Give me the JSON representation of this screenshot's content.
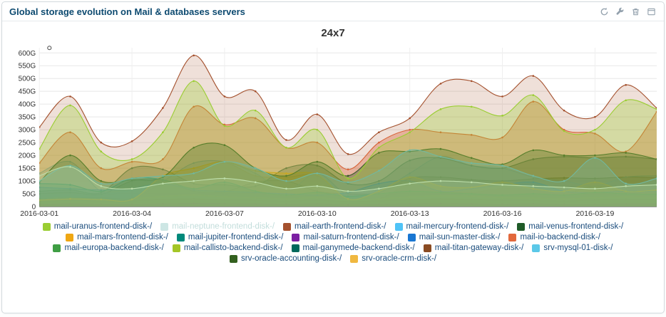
{
  "panel": {
    "title": "Global storage evolution on Mail & databases servers",
    "toolbar_icons": [
      "refresh",
      "wrench",
      "trash",
      "collapse"
    ]
  },
  "chart_data": {
    "type": "area",
    "title": "24x7",
    "unit": "G",
    "grid": true,
    "legend_position": "bottom",
    "ylim": [
      0,
      620
    ],
    "y_ticks": [
      "0",
      "50G",
      "100G",
      "150G",
      "200G",
      "250G",
      "300G",
      "350G",
      "400G",
      "450G",
      "500G",
      "550G",
      "600G"
    ],
    "x_tick_labels": [
      "2016-03-01",
      "2016-03-04",
      "2016-03-07",
      "2016-03-10",
      "2016-03-13",
      "2016-03-16",
      "2016-03-19"
    ],
    "x": [
      "2016-03-01",
      "2016-03-02",
      "2016-03-03",
      "2016-03-04",
      "2016-03-05",
      "2016-03-06",
      "2016-03-07",
      "2016-03-08",
      "2016-03-09",
      "2016-03-10",
      "2016-03-11",
      "2016-03-12",
      "2016-03-13",
      "2016-03-14",
      "2016-03-15",
      "2016-03-16",
      "2016-03-17",
      "2016-03-18",
      "2016-03-19",
      "2016-03-20",
      "2016-03-21"
    ],
    "series": [
      {
        "name": "mail-uranus-frontend-disk-/",
        "color": "#9ACD32",
        "values": [
          225,
          395,
          215,
          185,
          290,
          490,
          315,
          375,
          230,
          300,
          110,
          230,
          290,
          380,
          390,
          355,
          435,
          295,
          300,
          415,
          380
        ]
      },
      {
        "name": "mail-neptune-frontend-disk-/",
        "color": "#CDE6E4",
        "dimmed": true,
        "values": [
          120,
          155,
          80,
          70,
          90,
          100,
          110,
          95,
          70,
          80,
          60,
          70,
          90,
          100,
          95,
          85,
          80,
          75,
          70,
          80,
          85
        ]
      },
      {
        "name": "mail-earth-frontend-disk-/",
        "color": "#A4512E",
        "values": [
          310,
          430,
          250,
          255,
          385,
          590,
          430,
          450,
          260,
          360,
          205,
          290,
          345,
          480,
          490,
          430,
          510,
          375,
          350,
          475,
          385
        ]
      },
      {
        "name": "mail-mercury-frontend-disk-/",
        "color": "#4FC3F7",
        "values": [
          100,
          160,
          90,
          110,
          120,
          130,
          175,
          150,
          100,
          130,
          95,
          140,
          220,
          195,
          170,
          160,
          120,
          100,
          190,
          90,
          110
        ]
      },
      {
        "name": "mail-venus-frontend-disk-/",
        "color": "#1F5B28",
        "values": [
          95,
          200,
          100,
          105,
          115,
          230,
          240,
          150,
          120,
          175,
          120,
          210,
          215,
          225,
          190,
          165,
          220,
          200,
          200,
          210,
          185
        ]
      },
      {
        "name": "mail-mars-frontend-disk-/",
        "color": "#EFA713",
        "values": [
          25,
          30,
          28,
          28,
          120,
          150,
          175,
          140,
          130,
          125,
          30,
          60,
          115,
          80,
          75,
          95,
          70,
          60,
          95,
          60,
          65
        ]
      },
      {
        "name": "mail-jupiter-frontend-disk-/",
        "color": "#00897B",
        "values": [
          90,
          85,
          60,
          110,
          105,
          70,
          95,
          60,
          45,
          55,
          40,
          50,
          60,
          55,
          50,
          45,
          50,
          45,
          55,
          50,
          48
        ]
      },
      {
        "name": "mail-saturn-frontend-disk-/",
        "color": "#7B1FA2",
        "values": [
          8,
          10,
          9,
          9,
          10,
          12,
          11,
          10,
          9,
          10,
          8,
          9,
          10,
          11,
          10,
          9,
          10,
          9,
          9,
          10,
          10
        ]
      },
      {
        "name": "mail-sun-master-disk-/",
        "color": "#1976D2",
        "values": [
          75,
          70,
          65,
          70,
          90,
          65,
          60,
          55,
          50,
          45,
          55,
          90,
          100,
          60,
          70,
          85,
          95,
          60,
          55,
          60,
          58
        ]
      },
      {
        "name": "mail-io-backend-disk-/",
        "color": "#E2683C",
        "values": [
          170,
          290,
          150,
          175,
          185,
          390,
          320,
          345,
          230,
          250,
          145,
          250,
          300,
          290,
          280,
          270,
          410,
          300,
          285,
          215,
          370
        ]
      },
      {
        "name": "mail-europa-backend-disk-/",
        "color": "#3F9E44",
        "values": [
          15,
          18,
          16,
          17,
          20,
          22,
          20,
          18,
          16,
          18,
          15,
          17,
          20,
          22,
          20,
          18,
          17,
          16,
          18,
          20,
          19
        ]
      },
      {
        "name": "mail-callisto-backend-disk-/",
        "color": "#A4C627",
        "values": [
          30,
          35,
          28,
          30,
          40,
          45,
          38,
          35,
          30,
          35,
          25,
          30,
          38,
          42,
          40,
          35,
          33,
          30,
          35,
          38,
          36
        ]
      },
      {
        "name": "mail-ganymede-backend-disk-/",
        "color": "#00695C",
        "values": [
          60,
          65,
          55,
          150,
          145,
          90,
          85,
          80,
          150,
          160,
          90,
          100,
          180,
          190,
          160,
          150,
          185,
          195,
          190,
          195,
          185
        ]
      },
      {
        "name": "mail-titan-gateway-disk-/",
        "color": "#8A4B22",
        "values": [
          20,
          25,
          22,
          23,
          28,
          30,
          26,
          24,
          22,
          25,
          20,
          23,
          27,
          30,
          28,
          25,
          24,
          22,
          26,
          28,
          27
        ]
      },
      {
        "name": "srv-mysql-01-disk-/",
        "color": "#5BC8E8",
        "values": [
          130,
          175,
          60,
          65,
          100,
          170,
          175,
          130,
          60,
          130,
          45,
          60,
          130,
          195,
          160,
          150,
          115,
          100,
          80,
          115,
          120
        ]
      },
      {
        "name": "srv-oracle-accounting-disk-/",
        "color": "#33601F",
        "values": [
          50,
          55,
          48,
          100,
          105,
          60,
          58,
          95,
          100,
          60,
          50,
          55,
          110,
          115,
          105,
          100,
          108,
          112,
          110,
          115,
          112
        ]
      },
      {
        "name": "srv-oracle-crm-disk-/",
        "color": "#F0B840",
        "values": [
          30,
          35,
          35,
          32,
          90,
          130,
          170,
          120,
          115,
          120,
          28,
          30,
          85,
          60,
          55,
          70,
          65,
          50,
          80,
          55,
          52
        ]
      }
    ]
  }
}
